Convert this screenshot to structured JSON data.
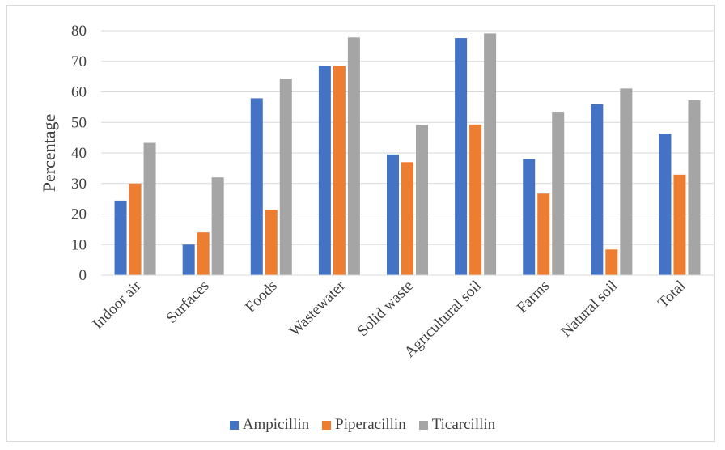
{
  "chart_data": {
    "type": "bar",
    "title": "",
    "xlabel": "",
    "ylabel": "Percentage",
    "ylim": [
      0,
      80
    ],
    "yticks": [
      0,
      10,
      20,
      30,
      40,
      50,
      60,
      70,
      80
    ],
    "grid": true,
    "legend_position": "bottom",
    "categories": [
      "Indoor air",
      "Surfaces",
      "Foods",
      "Wastewater",
      "Solid waste",
      "Agricultural soil",
      "Farms",
      "Natural soil",
      "Total"
    ],
    "series": [
      {
        "name": "Ampicillin",
        "color": "#4472C4",
        "values": [
          24.4,
          10,
          57.9,
          68.5,
          39.5,
          77.6,
          38,
          56,
          46.3
        ]
      },
      {
        "name": "Piperacillin",
        "color": "#ED7D31",
        "values": [
          30,
          14,
          21.4,
          68.5,
          37,
          49.3,
          26.7,
          8.4,
          32.9
        ]
      },
      {
        "name": "Ticarcillin",
        "color": "#A5A5A5",
        "values": [
          43.3,
          32,
          64.3,
          77.8,
          49.2,
          79.1,
          53.5,
          61.1,
          57.3
        ]
      }
    ]
  }
}
